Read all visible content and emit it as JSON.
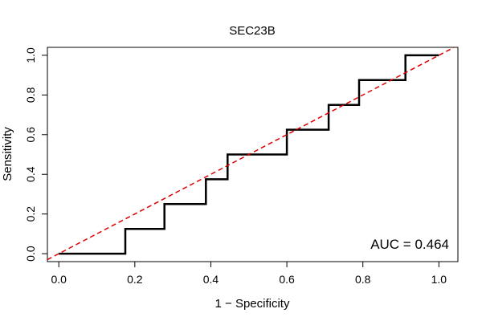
{
  "chart_data": {
    "type": "line",
    "title": "SEC23B",
    "xlabel": "1 − Specificity",
    "ylabel": "Sensitivity",
    "xlim": [
      -0.03,
      1.05
    ],
    "ylim": [
      -0.04,
      1.04
    ],
    "xticks": [
      "0.0",
      "0.2",
      "0.4",
      "0.6",
      "0.8",
      "1.0"
    ],
    "yticks": [
      "0.0",
      "0.2",
      "0.4",
      "0.6",
      "0.8",
      "1.0"
    ],
    "grid": false,
    "annotation": "AUC = 0.464",
    "colors": {
      "roc": "#000000",
      "reference": "#dd0000"
    },
    "series": [
      {
        "style": "step",
        "x": [
          0.0,
          0.175,
          0.175,
          0.278,
          0.278,
          0.387,
          0.387,
          0.444,
          0.444,
          0.6,
          0.6,
          0.71,
          0.71,
          0.79,
          0.79,
          0.912,
          0.912,
          1.0
        ],
        "y": [
          0.0,
          0.0,
          0.125,
          0.125,
          0.25,
          0.25,
          0.375,
          0.375,
          0.5,
          0.5,
          0.625,
          0.625,
          0.75,
          0.75,
          0.875,
          0.875,
          1.0,
          1.0
        ]
      },
      {
        "style": "dashed",
        "x": [
          -0.03,
          1.05
        ],
        "y": [
          -0.03,
          1.05
        ]
      }
    ]
  }
}
